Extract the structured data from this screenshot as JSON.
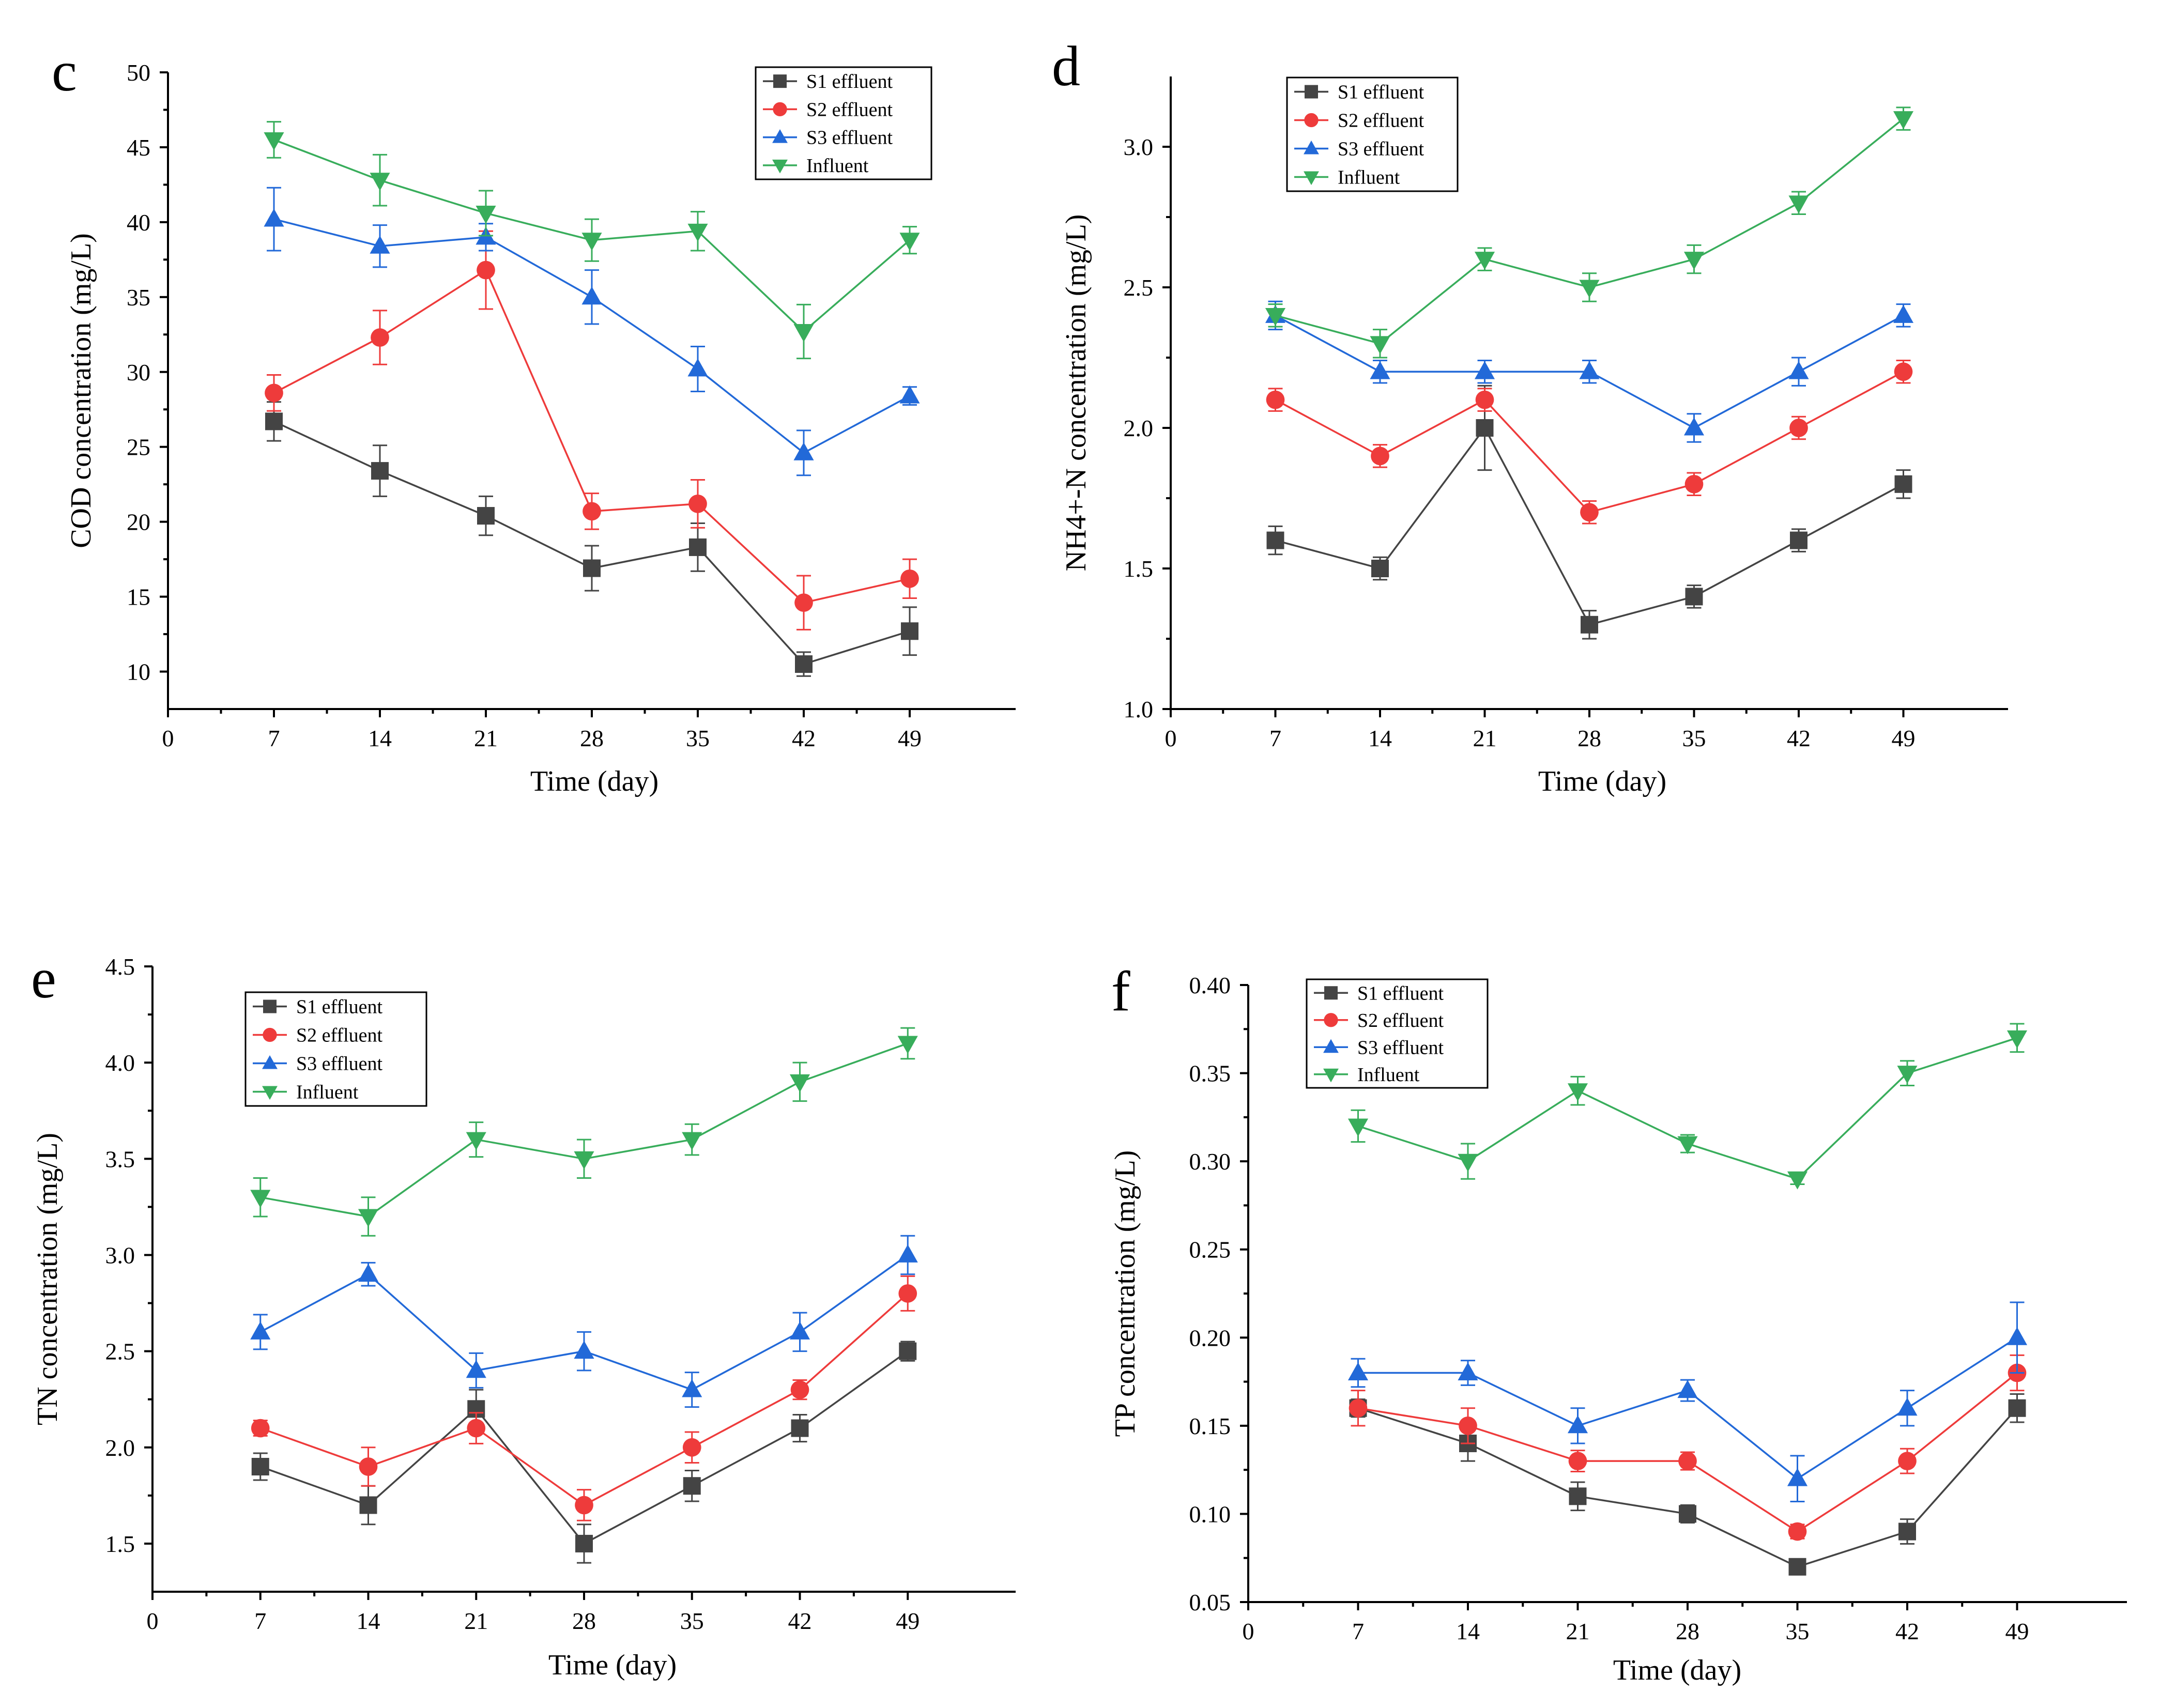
{
  "figure": {
    "background": "#ffffff"
  },
  "series_colors": {
    "S1 effluent": "#444444",
    "S2 effluent": "#ee3b3b",
    "S3 effluent": "#2269d8",
    "Influent": "#38ad5b"
  },
  "series_markers": {
    "S1 effluent": "square",
    "S2 effluent": "circle",
    "S3 effluent": "triangle-up",
    "Influent": "triangle-down"
  },
  "chart_data": [
    {
      "panel": "c",
      "type": "line",
      "xlabel": "Time (day)",
      "ylabel": "COD concentration (mg/L)",
      "xlim": [
        0,
        56
      ],
      "ylim": [
        7.5,
        50
      ],
      "xticks": [
        0,
        7,
        14,
        21,
        28,
        35,
        42,
        49
      ],
      "yticks": [
        10,
        15,
        20,
        25,
        30,
        35,
        40,
        45,
        50
      ],
      "ytick_labels": [
        "10",
        "15",
        "20",
        "25",
        "30",
        "35",
        "40",
        "45",
        "50"
      ],
      "legend_position": "top-right",
      "x": [
        7,
        14,
        21,
        28,
        35,
        42,
        49
      ],
      "series": [
        {
          "name": "S1 effluent",
          "values": [
            26.7,
            23.4,
            20.4,
            16.9,
            18.3,
            10.5,
            12.7
          ],
          "errors": [
            1.3,
            1.7,
            1.3,
            1.5,
            1.6,
            0.8,
            1.6
          ]
        },
        {
          "name": "S2 effluent",
          "values": [
            28.6,
            32.3,
            36.8,
            20.7,
            21.2,
            14.6,
            16.2
          ],
          "errors": [
            1.2,
            1.8,
            2.6,
            1.2,
            1.6,
            1.8,
            1.3
          ]
        },
        {
          "name": "S3 effluent",
          "values": [
            40.2,
            38.4,
            39.0,
            35.0,
            30.2,
            24.6,
            28.4
          ],
          "errors": [
            2.1,
            1.4,
            0.9,
            1.8,
            1.5,
            1.5,
            0.6
          ]
        },
        {
          "name": "Influent",
          "values": [
            45.5,
            42.8,
            40.6,
            38.8,
            39.4,
            32.7,
            38.8
          ],
          "errors": [
            1.2,
            1.7,
            1.5,
            1.4,
            1.3,
            1.8,
            0.9
          ]
        }
      ]
    },
    {
      "panel": "d",
      "type": "line",
      "xlabel": "Time (day)",
      "ylabel": "NH4+-N concentration (mg/L)",
      "xlim": [
        0,
        56
      ],
      "ylim": [
        1.0,
        3.25
      ],
      "xticks": [
        0,
        7,
        14,
        21,
        28,
        35,
        42,
        49
      ],
      "yticks": [
        1.0,
        1.5,
        2.0,
        2.5,
        3.0
      ],
      "ytick_labels": [
        "1.0",
        "1.5",
        "2.0",
        "2.5",
        "3.0"
      ],
      "legend_position": "top-left",
      "x": [
        7,
        14,
        21,
        28,
        35,
        42,
        49
      ],
      "series": [
        {
          "name": "S1 effluent",
          "values": [
            1.6,
            1.5,
            2.0,
            1.3,
            1.4,
            1.6,
            1.8
          ],
          "errors": [
            0.05,
            0.04,
            0.15,
            0.05,
            0.04,
            0.04,
            0.05
          ]
        },
        {
          "name": "S2 effluent",
          "values": [
            2.1,
            1.9,
            2.1,
            1.7,
            1.8,
            2.0,
            2.2
          ],
          "errors": [
            0.04,
            0.04,
            0.04,
            0.04,
            0.04,
            0.04,
            0.04
          ]
        },
        {
          "name": "S3 effluent",
          "values": [
            2.4,
            2.2,
            2.2,
            2.2,
            2.0,
            2.2,
            2.4
          ],
          "errors": [
            0.05,
            0.04,
            0.04,
            0.04,
            0.05,
            0.05,
            0.04
          ]
        },
        {
          "name": "Influent",
          "values": [
            2.4,
            2.3,
            2.6,
            2.5,
            2.6,
            2.8,
            3.1
          ],
          "errors": [
            0.04,
            0.05,
            0.04,
            0.05,
            0.05,
            0.04,
            0.04
          ]
        }
      ]
    },
    {
      "panel": "e",
      "type": "line",
      "xlabel": "Time (day)",
      "ylabel": "TN concentration (mg/L)",
      "xlim": [
        0,
        56
      ],
      "ylim": [
        1.25,
        4.5
      ],
      "xticks": [
        0,
        7,
        14,
        21,
        28,
        35,
        42,
        49
      ],
      "yticks": [
        1.5,
        2.0,
        2.5,
        3.0,
        3.5,
        4.0,
        4.5
      ],
      "ytick_labels": [
        "1.5",
        "2.0",
        "2.5",
        "3.0",
        "3.5",
        "4.0",
        "4.5"
      ],
      "legend_position": "top-left",
      "x": [
        7,
        14,
        21,
        28,
        35,
        42,
        49
      ],
      "series": [
        {
          "name": "S1 effluent",
          "values": [
            1.9,
            1.7,
            2.2,
            1.5,
            1.8,
            2.1,
            2.5
          ],
          "errors": [
            0.07,
            0.1,
            0.1,
            0.1,
            0.08,
            0.07,
            0.05
          ]
        },
        {
          "name": "S2 effluent",
          "values": [
            2.1,
            1.9,
            2.1,
            1.7,
            2.0,
            2.3,
            2.8
          ],
          "errors": [
            0.04,
            0.1,
            0.08,
            0.08,
            0.08,
            0.05,
            0.09
          ]
        },
        {
          "name": "S3 effluent",
          "values": [
            2.6,
            2.9,
            2.4,
            2.5,
            2.3,
            2.6,
            3.0
          ],
          "errors": [
            0.09,
            0.06,
            0.09,
            0.1,
            0.09,
            0.1,
            0.1
          ]
        },
        {
          "name": "Influent",
          "values": [
            3.3,
            3.2,
            3.6,
            3.5,
            3.6,
            3.9,
            4.1
          ],
          "errors": [
            0.1,
            0.1,
            0.09,
            0.1,
            0.08,
            0.1,
            0.08
          ]
        }
      ]
    },
    {
      "panel": "f",
      "type": "line",
      "xlabel": "Time (day)",
      "ylabel": "TP concentration (mg/L)",
      "xlim": [
        0,
        56
      ],
      "ylim": [
        0.05,
        0.4
      ],
      "xticks": [
        0,
        7,
        14,
        21,
        28,
        35,
        42,
        49
      ],
      "yticks": [
        0.05,
        0.1,
        0.15,
        0.2,
        0.25,
        0.3,
        0.35,
        0.4
      ],
      "ytick_labels": [
        "0.05",
        "0.10",
        "0.15",
        "0.20",
        "0.25",
        "0.30",
        "0.35",
        "0.40"
      ],
      "legend_position": "top-left",
      "x": [
        7,
        14,
        21,
        28,
        35,
        42,
        49
      ],
      "series": [
        {
          "name": "S1 effluent",
          "values": [
            0.16,
            0.14,
            0.11,
            0.1,
            0.07,
            0.09,
            0.16
          ],
          "errors": [
            0.005,
            0.01,
            0.008,
            0.005,
            0.003,
            0.007,
            0.008
          ]
        },
        {
          "name": "S2 effluent",
          "values": [
            0.16,
            0.15,
            0.13,
            0.13,
            0.09,
            0.13,
            0.18
          ],
          "errors": [
            0.01,
            0.01,
            0.006,
            0.005,
            0.004,
            0.007,
            0.01
          ]
        },
        {
          "name": "S3 effluent",
          "values": [
            0.18,
            0.18,
            0.15,
            0.17,
            0.12,
            0.16,
            0.2
          ],
          "errors": [
            0.008,
            0.007,
            0.01,
            0.006,
            0.013,
            0.01,
            0.02
          ]
        },
        {
          "name": "Influent",
          "values": [
            0.32,
            0.3,
            0.34,
            0.31,
            0.29,
            0.35,
            0.37
          ],
          "errors": [
            0.009,
            0.01,
            0.008,
            0.005,
            0.003,
            0.007,
            0.008
          ]
        }
      ]
    }
  ]
}
